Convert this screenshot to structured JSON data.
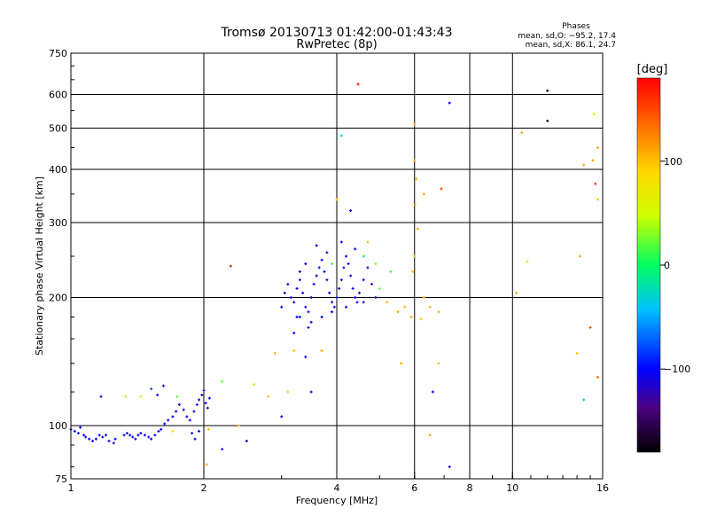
{
  "chart_data": {
    "type": "scatter",
    "title": "Tromsø 20130713 01:42:00-01:43:43",
    "subtitle": "RwPretec (8p)",
    "xlabel": "Frequency [MHz]",
    "ylabel": "Stationary phase Virtual Height [km]",
    "x_scale": "log",
    "y_scale": "log",
    "xlim": [
      1,
      16
    ],
    "ylim": [
      75,
      750
    ],
    "grid": true,
    "x_tick_labels": [
      "1",
      "2",
      "4",
      "6",
      "8",
      "10",
      "16"
    ],
    "x_grid_values": [
      2,
      4,
      6,
      8,
      10
    ],
    "y_tick_labels": [
      "75",
      "100",
      "200",
      "300",
      "400",
      "500",
      "600",
      "750"
    ],
    "y_grid_values": [
      100,
      200,
      300,
      400,
      500,
      600
    ],
    "phase_box": {
      "title": "Phases",
      "line1": "mean, sd,O: −95.2, 17.4",
      "line2": "mean, sd,X:  86.1, 24.7"
    },
    "colorbar": {
      "label": "[deg]",
      "range": [
        -180,
        180
      ],
      "tick_labels": [
        "100",
        "0",
        "−100"
      ],
      "tick_values": [
        100,
        0,
        -100
      ]
    },
    "series": [
      {
        "points": [
          [
            1.0,
            98,
            -100
          ],
          [
            1.02,
            97,
            -105
          ],
          [
            1.04,
            96,
            -110
          ],
          [
            1.05,
            99,
            -100
          ],
          [
            1.07,
            95,
            -100
          ],
          [
            1.08,
            94,
            -110
          ],
          [
            1.1,
            93,
            -110
          ],
          [
            1.12,
            92,
            -100
          ],
          [
            1.14,
            93,
            -105
          ],
          [
            1.16,
            95,
            -100
          ],
          [
            1.18,
            94,
            -110
          ],
          [
            1.2,
            95,
            -100
          ],
          [
            1.22,
            92,
            -100
          ],
          [
            1.25,
            91,
            -110
          ],
          [
            1.26,
            93,
            -100
          ],
          [
            1.17,
            117,
            -110
          ],
          [
            1.32,
            95,
            -100
          ],
          [
            1.34,
            96,
            -110
          ],
          [
            1.36,
            95,
            -100
          ],
          [
            1.38,
            94,
            -105
          ],
          [
            1.4,
            93,
            -110
          ],
          [
            1.42,
            95,
            -100
          ],
          [
            1.44,
            96,
            -100
          ],
          [
            1.47,
            95,
            -110
          ],
          [
            1.5,
            94,
            -100
          ],
          [
            1.52,
            93,
            -105
          ],
          [
            1.55,
            95,
            -100
          ],
          [
            1.58,
            97,
            -110
          ],
          [
            1.6,
            98,
            -100
          ],
          [
            1.63,
            101,
            -100
          ],
          [
            1.66,
            103,
            -110
          ],
          [
            1.7,
            105,
            -100
          ],
          [
            1.73,
            108,
            -105
          ],
          [
            1.76,
            112,
            -100
          ],
          [
            1.8,
            109,
            -100
          ],
          [
            1.83,
            105,
            -110
          ],
          [
            1.86,
            103,
            -100
          ],
          [
            1.9,
            108,
            -105
          ],
          [
            1.93,
            112,
            -100
          ],
          [
            1.95,
            115,
            -110
          ],
          [
            1.98,
            118,
            -100
          ],
          [
            2.0,
            121,
            -95
          ],
          [
            2.02,
            113,
            -100
          ],
          [
            2.04,
            110,
            -110
          ],
          [
            2.06,
            116,
            -100
          ],
          [
            1.88,
            96,
            -100
          ],
          [
            1.91,
            93,
            -110
          ],
          [
            1.95,
            97,
            -100
          ],
          [
            1.62,
            124,
            -100
          ],
          [
            1.57,
            118,
            -110
          ],
          [
            1.74,
            117,
            20
          ],
          [
            1.44,
            117,
            40
          ],
          [
            1.52,
            122,
            -80
          ],
          [
            1.33,
            117,
            40
          ],
          [
            1.7,
            97,
            90
          ],
          [
            2.2,
            88,
            -100
          ],
          [
            2.05,
            98,
            100
          ],
          [
            2.03,
            81,
            110
          ],
          [
            3.0,
            190,
            -100
          ],
          [
            3.05,
            205,
            -110
          ],
          [
            3.1,
            215,
            -100
          ],
          [
            3.15,
            200,
            -105
          ],
          [
            3.2,
            195,
            -100
          ],
          [
            3.25,
            210,
            -110
          ],
          [
            3.3,
            220,
            -100
          ],
          [
            3.35,
            205,
            -105
          ],
          [
            3.4,
            190,
            -100
          ],
          [
            3.45,
            185,
            -110
          ],
          [
            3.5,
            200,
            -100
          ],
          [
            3.55,
            215,
            -100
          ],
          [
            3.6,
            225,
            -110
          ],
          [
            3.65,
            235,
            -100
          ],
          [
            3.7,
            245,
            -105
          ],
          [
            3.75,
            230,
            -100
          ],
          [
            3.8,
            220,
            -110
          ],
          [
            3.85,
            205,
            -100
          ],
          [
            3.9,
            195,
            -100
          ],
          [
            3.95,
            190,
            -110
          ],
          [
            4.0,
            200,
            -100
          ],
          [
            4.05,
            210,
            -105
          ],
          [
            4.1,
            220,
            -100
          ],
          [
            4.15,
            235,
            -110
          ],
          [
            4.2,
            250,
            -100
          ],
          [
            4.25,
            240,
            -100
          ],
          [
            4.3,
            225,
            -110
          ],
          [
            4.35,
            210,
            -100
          ],
          [
            4.4,
            200,
            -105
          ],
          [
            4.45,
            195,
            -100
          ],
          [
            4.5,
            205,
            -110
          ],
          [
            4.6,
            220,
            -100
          ],
          [
            4.7,
            235,
            -100
          ],
          [
            4.8,
            215,
            -110
          ],
          [
            4.9,
            200,
            -100
          ],
          [
            3.3,
            180,
            -100
          ],
          [
            3.5,
            175,
            -110
          ],
          [
            3.7,
            180,
            -100
          ],
          [
            3.9,
            185,
            -105
          ],
          [
            3.6,
            265,
            -100
          ],
          [
            3.8,
            255,
            -110
          ],
          [
            4.1,
            270,
            -100
          ],
          [
            4.4,
            260,
            -100
          ],
          [
            3.3,
            230,
            -110
          ],
          [
            3.4,
            240,
            -100
          ],
          [
            3.25,
            180,
            -100
          ],
          [
            3.45,
            170,
            -110
          ],
          [
            3.2,
            165,
            -100
          ],
          [
            4.2,
            190,
            -100
          ],
          [
            4.6,
            195,
            -110
          ],
          [
            5.0,
            210,
            20
          ],
          [
            5.2,
            195,
            100
          ],
          [
            5.5,
            185,
            110
          ],
          [
            5.7,
            190,
            100
          ],
          [
            5.9,
            180,
            105
          ],
          [
            6.2,
            178,
            100
          ],
          [
            6.5,
            190,
            100
          ],
          [
            6.8,
            185,
            110
          ],
          [
            4.9,
            240,
            30
          ],
          [
            4.6,
            250,
            0
          ],
          [
            5.3,
            230,
            10
          ],
          [
            4.0,
            340,
            110
          ],
          [
            4.3,
            320,
            -100
          ],
          [
            4.1,
            480,
            -40
          ],
          [
            3.9,
            240,
            20
          ],
          [
            4.7,
            270,
            100
          ],
          [
            3.7,
            150,
            110
          ],
          [
            3.2,
            150,
            100
          ],
          [
            3.4,
            145,
            -100
          ],
          [
            5.6,
            140,
            110
          ],
          [
            6.3,
            200,
            105
          ],
          [
            4.47,
            634,
            170
          ],
          [
            6.0,
            510,
            110
          ],
          [
            6.0,
            420,
            105
          ],
          [
            6.05,
            380,
            110
          ],
          [
            6.02,
            330,
            100
          ],
          [
            6.1,
            290,
            110
          ],
          [
            6.0,
            250,
            100
          ],
          [
            5.95,
            230,
            105
          ],
          [
            6.9,
            360,
            150
          ],
          [
            7.2,
            573,
            -100
          ],
          [
            6.3,
            350,
            110
          ],
          [
            6.6,
            120,
            -100
          ],
          [
            7.2,
            80,
            -100
          ],
          [
            6.5,
            95,
            110
          ],
          [
            6.8,
            140,
            100
          ],
          [
            10.5,
            488,
            110
          ],
          [
            12.0,
            612,
            -170
          ],
          [
            12.0,
            520,
            -170
          ],
          [
            14.5,
            410,
            110
          ],
          [
            15.2,
            420,
            110
          ],
          [
            15.3,
            540,
            60
          ],
          [
            15.4,
            370,
            160
          ],
          [
            10.8,
            243,
            50
          ],
          [
            14.2,
            250,
            110
          ],
          [
            10.2,
            205,
            110
          ],
          [
            14.5,
            115,
            -30
          ],
          [
            15.6,
            130,
            140
          ],
          [
            15.0,
            170,
            150
          ],
          [
            15.6,
            340,
            100
          ],
          [
            15.6,
            450,
            110
          ],
          [
            14.0,
            148,
            100
          ],
          [
            2.3,
            237,
            170
          ],
          [
            2.6,
            125,
            50
          ],
          [
            2.8,
            117,
            100
          ],
          [
            3.0,
            105,
            -100
          ],
          [
            3.5,
            120,
            -100
          ],
          [
            2.2,
            127,
            20
          ],
          [
            2.5,
            92,
            -100
          ],
          [
            2.4,
            100,
            110
          ],
          [
            2.9,
            148,
            110
          ],
          [
            3.1,
            120,
            30
          ]
        ]
      }
    ]
  }
}
